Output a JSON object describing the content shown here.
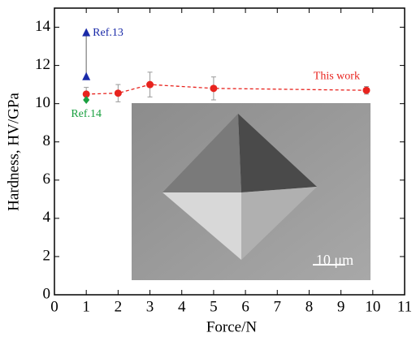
{
  "chart_data": {
    "type": "scatter",
    "x_label": "Force/N",
    "y_label": "Hardness, HV/GPa",
    "xlim": [
      0,
      11
    ],
    "xticks": [
      0,
      1,
      2,
      3,
      4,
      5,
      6,
      7,
      8,
      9,
      10,
      11
    ],
    "ylim": [
      0,
      15
    ],
    "yticks": [
      0,
      2,
      4,
      6,
      8,
      10,
      12,
      14
    ],
    "inset_scale_label": "10 μm",
    "series": [
      {
        "name": "This work",
        "color": "#e8231e",
        "marker": "circle",
        "line": "dashed",
        "x": [
          1,
          2,
          3,
          5,
          9.8
        ],
        "values": [
          10.5,
          10.55,
          11.0,
          10.8,
          10.7
        ],
        "errors": [
          0.35,
          0.45,
          0.65,
          0.6,
          0.2
        ]
      },
      {
        "name": "Ref.13",
        "color": "#1a2aa8",
        "marker": "triangle",
        "line": "solid",
        "x": [
          1,
          1
        ],
        "values": [
          13.7,
          11.4
        ]
      },
      {
        "name": "Ref.14",
        "color": "#1aa040",
        "marker": "diamond",
        "line": "none",
        "x": [
          1
        ],
        "values": [
          10.2
        ]
      }
    ]
  }
}
